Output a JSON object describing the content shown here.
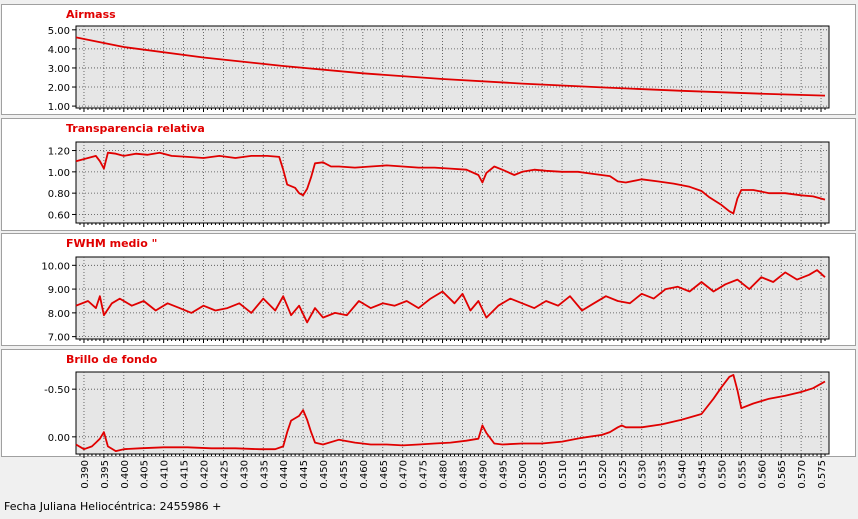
{
  "colors": {
    "series": "#e00000",
    "title": "#e00000",
    "plot_bg": "#e6e6e6",
    "grid": "#4a4a4a",
    "panel_bg": "#ffffff",
    "axis": "#000000"
  },
  "footer": {
    "label": "Fecha Juliana Heliocéntrica: 2455986 +"
  },
  "x_axis": {
    "range": [
      0.388,
      0.577
    ],
    "major_ticks": [
      0.39,
      0.395,
      0.4,
      0.405,
      0.41,
      0.415,
      0.42,
      0.425,
      0.43,
      0.435,
      0.44,
      0.445,
      0.45,
      0.455,
      0.46,
      0.465,
      0.47,
      0.475,
      0.48,
      0.485,
      0.49,
      0.495,
      0.5,
      0.505,
      0.51,
      0.515,
      0.52,
      0.525,
      0.53,
      0.535,
      0.54,
      0.545,
      0.55,
      0.555,
      0.56,
      0.565,
      0.57,
      0.575
    ],
    "tick_labels": [
      "0.390",
      "0.395",
      "0.400",
      "0.405",
      "0.410",
      "0.415",
      "0.420",
      "0.425",
      "0.430",
      "0.435",
      "0.440",
      "0.445",
      "0.450",
      "0.455",
      "0.460",
      "0.465",
      "0.470",
      "0.475",
      "0.480",
      "0.485",
      "0.490",
      "0.495",
      "0.500",
      "0.505",
      "0.510",
      "0.515",
      "0.520",
      "0.525",
      "0.530",
      "0.535",
      "0.540",
      "0.545",
      "0.550",
      "0.555",
      "0.560",
      "0.565",
      "0.570",
      "0.575"
    ]
  },
  "chart_data": [
    {
      "type": "line",
      "title": "Airmass",
      "ylim": [
        0.9,
        5.2
      ],
      "inverted": false,
      "y_ticks": [
        1.0,
        2.0,
        3.0,
        4.0,
        5.0
      ],
      "y_tick_labels": [
        "1.00",
        "2.00",
        "3.00",
        "4.00",
        "5.00"
      ],
      "x": [
        0.388,
        0.4,
        0.42,
        0.44,
        0.46,
        0.48,
        0.5,
        0.52,
        0.54,
        0.56,
        0.576
      ],
      "y": [
        4.6,
        4.1,
        3.55,
        3.1,
        2.72,
        2.42,
        2.18,
        1.98,
        1.8,
        1.65,
        1.55
      ]
    },
    {
      "type": "line",
      "title": "Transparencia relativa",
      "ylim": [
        0.52,
        1.28
      ],
      "inverted": false,
      "y_ticks": [
        0.6,
        0.8,
        1.0,
        1.2
      ],
      "y_tick_labels": [
        "0.60",
        "0.80",
        "1.00",
        "1.20"
      ],
      "x": [
        0.388,
        0.391,
        0.393,
        0.394,
        0.395,
        0.396,
        0.398,
        0.4,
        0.403,
        0.406,
        0.409,
        0.412,
        0.416,
        0.42,
        0.424,
        0.428,
        0.432,
        0.436,
        0.439,
        0.44,
        0.441,
        0.443,
        0.444,
        0.445,
        0.446,
        0.447,
        0.448,
        0.45,
        0.452,
        0.454,
        0.458,
        0.462,
        0.466,
        0.47,
        0.474,
        0.478,
        0.482,
        0.486,
        0.489,
        0.49,
        0.491,
        0.493,
        0.495,
        0.498,
        0.5,
        0.503,
        0.506,
        0.51,
        0.514,
        0.518,
        0.522,
        0.524,
        0.526,
        0.53,
        0.534,
        0.538,
        0.542,
        0.545,
        0.547,
        0.55,
        0.552,
        0.553,
        0.554,
        0.555,
        0.558,
        0.562,
        0.566,
        0.57,
        0.573,
        0.576
      ],
      "y": [
        1.1,
        1.13,
        1.15,
        1.1,
        1.03,
        1.18,
        1.17,
        1.15,
        1.17,
        1.16,
        1.18,
        1.15,
        1.14,
        1.13,
        1.15,
        1.13,
        1.15,
        1.15,
        1.14,
        1.02,
        0.88,
        0.85,
        0.8,
        0.78,
        0.84,
        0.95,
        1.08,
        1.09,
        1.05,
        1.05,
        1.04,
        1.05,
        1.06,
        1.05,
        1.04,
        1.04,
        1.03,
        1.02,
        0.97,
        0.9,
        0.99,
        1.05,
        1.02,
        0.97,
        1.0,
        1.02,
        1.01,
        1.0,
        1.0,
        0.98,
        0.96,
        0.91,
        0.9,
        0.93,
        0.91,
        0.89,
        0.86,
        0.82,
        0.76,
        0.69,
        0.63,
        0.61,
        0.75,
        0.83,
        0.83,
        0.8,
        0.8,
        0.78,
        0.77,
        0.74
      ]
    },
    {
      "type": "line",
      "title": "FWHM medio \"",
      "ylim": [
        6.9,
        10.35
      ],
      "inverted": false,
      "y_ticks": [
        7.0,
        8.0,
        9.0,
        10.0
      ],
      "y_tick_labels": [
        "7.00",
        "8.00",
        "9.00",
        "10.00"
      ],
      "x": [
        0.388,
        0.391,
        0.393,
        0.394,
        0.395,
        0.397,
        0.399,
        0.402,
        0.405,
        0.408,
        0.411,
        0.414,
        0.417,
        0.42,
        0.423,
        0.426,
        0.429,
        0.432,
        0.435,
        0.438,
        0.44,
        0.442,
        0.444,
        0.446,
        0.448,
        0.45,
        0.453,
        0.456,
        0.459,
        0.462,
        0.465,
        0.468,
        0.471,
        0.474,
        0.477,
        0.48,
        0.483,
        0.485,
        0.487,
        0.489,
        0.491,
        0.494,
        0.497,
        0.5,
        0.503,
        0.506,
        0.509,
        0.512,
        0.515,
        0.518,
        0.521,
        0.524,
        0.527,
        0.53,
        0.533,
        0.536,
        0.539,
        0.542,
        0.545,
        0.548,
        0.551,
        0.554,
        0.557,
        0.56,
        0.563,
        0.566,
        0.569,
        0.572,
        0.574,
        0.576
      ],
      "y": [
        8.3,
        8.5,
        8.2,
        8.7,
        7.9,
        8.4,
        8.6,
        8.3,
        8.5,
        8.1,
        8.4,
        8.2,
        8.0,
        8.3,
        8.1,
        8.2,
        8.4,
        8.0,
        8.6,
        8.1,
        8.7,
        7.9,
        8.3,
        7.6,
        8.2,
        7.8,
        8.0,
        7.9,
        8.5,
        8.2,
        8.4,
        8.3,
        8.5,
        8.2,
        8.6,
        8.9,
        8.4,
        8.8,
        8.1,
        8.5,
        7.8,
        8.3,
        8.6,
        8.4,
        8.2,
        8.5,
        8.3,
        8.7,
        8.1,
        8.4,
        8.7,
        8.5,
        8.4,
        8.8,
        8.6,
        9.0,
        9.1,
        8.9,
        9.3,
        8.9,
        9.2,
        9.4,
        9.0,
        9.5,
        9.3,
        9.7,
        9.4,
        9.6,
        9.8,
        9.5
      ]
    },
    {
      "type": "line",
      "title": "Brillo de fondo",
      "ylim": [
        0.18,
        -0.68
      ],
      "inverted": true,
      "y_ticks": [
        0.0,
        -0.5
      ],
      "y_tick_labels": [
        "0.00",
        "-0.50"
      ],
      "x": [
        0.388,
        0.39,
        0.392,
        0.393,
        0.394,
        0.395,
        0.396,
        0.398,
        0.4,
        0.404,
        0.41,
        0.416,
        0.422,
        0.428,
        0.434,
        0.438,
        0.44,
        0.441,
        0.442,
        0.444,
        0.445,
        0.446,
        0.447,
        0.448,
        0.45,
        0.454,
        0.458,
        0.462,
        0.466,
        0.47,
        0.474,
        0.478,
        0.482,
        0.486,
        0.489,
        0.49,
        0.491,
        0.493,
        0.495,
        0.5,
        0.505,
        0.51,
        0.515,
        0.52,
        0.522,
        0.524,
        0.525,
        0.526,
        0.53,
        0.535,
        0.54,
        0.545,
        0.548,
        0.55,
        0.552,
        0.553,
        0.554,
        0.555,
        0.558,
        0.562,
        0.566,
        0.57,
        0.573,
        0.576
      ],
      "y": [
        0.08,
        0.13,
        0.1,
        0.06,
        0.02,
        -0.05,
        0.1,
        0.15,
        0.13,
        0.12,
        0.11,
        0.11,
        0.12,
        0.12,
        0.13,
        0.13,
        0.1,
        -0.05,
        -0.17,
        -0.22,
        -0.28,
        -0.18,
        -0.05,
        0.06,
        0.08,
        0.03,
        0.06,
        0.08,
        0.08,
        0.09,
        0.08,
        0.07,
        0.06,
        0.04,
        0.02,
        -0.12,
        -0.04,
        0.07,
        0.08,
        0.07,
        0.07,
        0.05,
        0.01,
        -0.02,
        -0.05,
        -0.1,
        -0.12,
        -0.1,
        -0.1,
        -0.13,
        -0.18,
        -0.24,
        -0.4,
        -0.52,
        -0.63,
        -0.65,
        -0.49,
        -0.3,
        -0.35,
        -0.4,
        -0.43,
        -0.47,
        -0.51,
        -0.58
      ]
    }
  ]
}
